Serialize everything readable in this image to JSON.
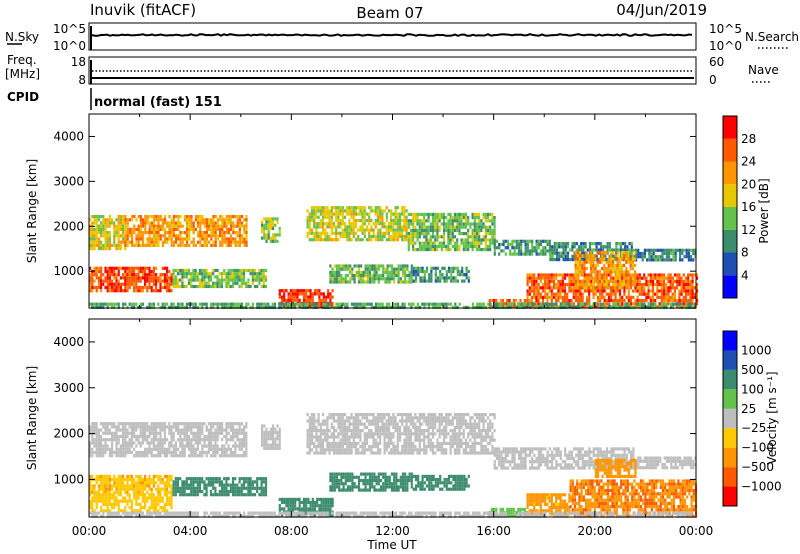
{
  "header": {
    "station": "Inuvik (fitACF)",
    "beam": "Beam 07",
    "date": "04/Jun/2019"
  },
  "info_panels": {
    "nsky_label": "N.Sky",
    "nsky_ticks": [
      "10^5",
      "10^0"
    ],
    "nsearch_label": "N.Search",
    "nsearch_ticks": [
      "10^5",
      "10^0"
    ],
    "freq_label_1": "Freq.",
    "freq_label_2": "[MHz]",
    "freq_ticks": [
      "18",
      "8"
    ],
    "nave_label": "Nave",
    "nave_ticks": [
      "60",
      "0"
    ],
    "cpid_label": "CPID",
    "cpid_value": "normal (fast) 151"
  },
  "colors": {
    "power_scale": [
      "#0000ff",
      "#1e4fb4",
      "#3c8c6e",
      "#63c24b",
      "#e6c800",
      "#ff9600",
      "#ff5a00",
      "#ff0000"
    ],
    "velocity_scale": [
      "#ff0000",
      "#ff5a00",
      "#ff9600",
      "#ffc800",
      "#bebebe",
      "#63c24b",
      "#3c8c6e",
      "#1e4fb4",
      "#0000ff"
    ],
    "ground_scatter": "#bebebe"
  },
  "chart_data": [
    {
      "type": "heatmap",
      "name": "power",
      "title": "",
      "xlabel": "Time UT",
      "ylabel": "Slant Range [km]",
      "x_range_hours": [
        0,
        24
      ],
      "y_range_km": [
        180,
        4500
      ],
      "x_ticks": [
        "00:00",
        "04:00",
        "08:00",
        "12:00",
        "16:00",
        "20:00",
        "00:00"
      ],
      "y_ticks": [
        1000,
        2000,
        3000,
        4000
      ],
      "colorbar_label": "Power [dB]",
      "colorbar_ticks": [
        "4",
        "8",
        "12",
        "16",
        "20",
        "24",
        "28"
      ],
      "colorbar_range": [
        0,
        32
      ],
      "bands": [
        {
          "t0": 0.0,
          "t1": 1.4,
          "r0": 1500,
          "r1": 2250,
          "value": 18
        },
        {
          "t0": 1.4,
          "t1": 6.2,
          "r0": 1600,
          "r1": 2250,
          "value": 22
        },
        {
          "t0": 6.8,
          "t1": 7.5,
          "r0": 1700,
          "r1": 2200,
          "value": 15
        },
        {
          "t0": 8.6,
          "t1": 12.6,
          "r0": 1700,
          "r1": 2450,
          "value": 17
        },
        {
          "t0": 12.6,
          "t1": 16.0,
          "r0": 1500,
          "r1": 2300,
          "value": 14
        },
        {
          "t0": 16.0,
          "t1": 18.2,
          "r0": 1350,
          "r1": 1700,
          "value": 11
        },
        {
          "t0": 18.2,
          "t1": 21.5,
          "r0": 1250,
          "r1": 1650,
          "value": 10
        },
        {
          "t0": 21.5,
          "t1": 24.0,
          "r0": 1250,
          "r1": 1500,
          "value": 9
        },
        {
          "t0": 0.0,
          "t1": 3.3,
          "r0": 600,
          "r1": 1100,
          "value": 27
        },
        {
          "t0": 3.3,
          "t1": 7.0,
          "r0": 650,
          "r1": 1050,
          "value": 14
        },
        {
          "t0": 9.5,
          "t1": 12.8,
          "r0": 750,
          "r1": 1150,
          "value": 13
        },
        {
          "t0": 12.8,
          "t1": 15.0,
          "r0": 800,
          "r1": 1100,
          "value": 11
        },
        {
          "t0": 7.5,
          "t1": 9.6,
          "r0": 200,
          "r1": 600,
          "value": 28
        },
        {
          "t0": 15.8,
          "t1": 17.3,
          "r0": 200,
          "r1": 380,
          "value": 26
        },
        {
          "t0": 17.3,
          "t1": 24.0,
          "r0": 220,
          "r1": 950,
          "value": 26
        },
        {
          "t0": 19.2,
          "t1": 21.6,
          "r0": 600,
          "r1": 1450,
          "value": 22
        },
        {
          "t0": 0.0,
          "t1": 24.0,
          "r0": 180,
          "r1": 300,
          "value": 12
        }
      ]
    },
    {
      "type": "heatmap",
      "name": "velocity",
      "title": "",
      "xlabel": "Time UT",
      "ylabel": "Slant Range [km]",
      "x_range_hours": [
        0,
        24
      ],
      "y_range_km": [
        180,
        4500
      ],
      "x_ticks": [
        "00:00",
        "04:00",
        "08:00",
        "12:00",
        "16:00",
        "20:00",
        "00:00"
      ],
      "y_ticks": [
        1000,
        2000,
        3000,
        4000
      ],
      "colorbar_label": "Velocity [m s⁻¹]",
      "colorbar_ticks": [
        "1000",
        "500",
        "100",
        "25",
        "−25",
        "−100",
        "−500",
        "−1000"
      ],
      "colorbar_levels": [
        -1000,
        -500,
        -100,
        -25,
        25,
        100,
        500,
        1000
      ],
      "bands": [
        {
          "t0": 0.0,
          "t1": 6.2,
          "r0": 1500,
          "r1": 2250,
          "value": "ground"
        },
        {
          "t0": 6.8,
          "t1": 7.5,
          "r0": 1700,
          "r1": 2200,
          "value": "ground"
        },
        {
          "t0": 8.6,
          "t1": 16.0,
          "r0": 1600,
          "r1": 2450,
          "value": "ground"
        },
        {
          "t0": 16.0,
          "t1": 21.5,
          "r0": 1250,
          "r1": 1700,
          "value": "ground"
        },
        {
          "t0": 21.5,
          "t1": 24.0,
          "r0": 1250,
          "r1": 1500,
          "value": "ground"
        },
        {
          "t0": 0.0,
          "t1": 3.3,
          "r0": 700,
          "r1": 1100,
          "value": -80
        },
        {
          "t0": 0.0,
          "t1": 3.3,
          "r0": 300,
          "r1": 700,
          "value": -60
        },
        {
          "t0": 3.3,
          "t1": 7.0,
          "r0": 650,
          "r1": 1050,
          "value": 300
        },
        {
          "t0": 7.5,
          "t1": 9.6,
          "r0": 200,
          "r1": 600,
          "value": 250
        },
        {
          "t0": 9.5,
          "t1": 12.8,
          "r0": 750,
          "r1": 1150,
          "value": 350
        },
        {
          "t0": 12.8,
          "t1": 15.0,
          "r0": 800,
          "r1": 1100,
          "value": 300
        },
        {
          "t0": 15.8,
          "t1": 17.3,
          "r0": 200,
          "r1": 380,
          "value": 60
        },
        {
          "t0": 17.3,
          "t1": 19.0,
          "r0": 220,
          "r1": 700,
          "value": -150
        },
        {
          "t0": 19.0,
          "t1": 24.0,
          "r0": 220,
          "r1": 1000,
          "value": -450
        },
        {
          "t0": 20.0,
          "t1": 21.6,
          "r0": 1100,
          "r1": 1450,
          "value": -300
        },
        {
          "t0": 0.0,
          "t1": 24.0,
          "r0": 180,
          "r1": 300,
          "value": "ground"
        }
      ]
    }
  ]
}
